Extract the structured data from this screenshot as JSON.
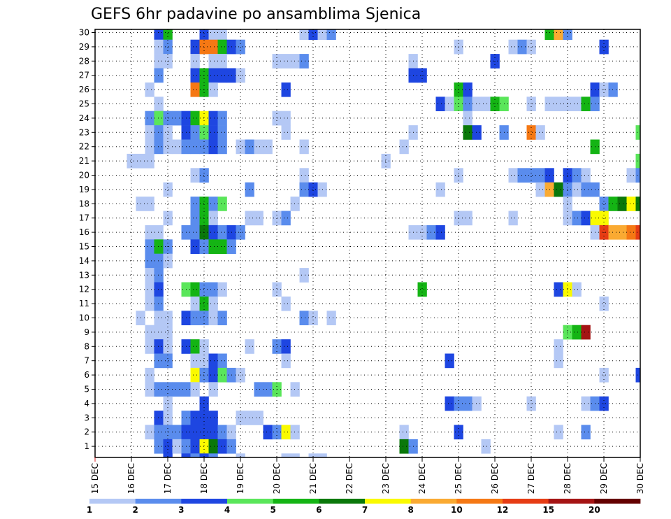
{
  "chart_data": {
    "type": "heatmap",
    "title": "GEFS 6hr padavine po ansamblima Sjenica",
    "xlabel": "",
    "ylabel": "",
    "x_ticks": [
      "15 DEC",
      "16 DEC",
      "17 DEC",
      "18 DEC",
      "19 DEC",
      "20 DEC",
      "21 DEC",
      "22 DEC",
      "23 DEC",
      "24 DEC",
      "25 DEC",
      "26 DEC",
      "27 DEC",
      "28 DEC",
      "29 DEC",
      "30 DEC"
    ],
    "y_ticks": [
      "1",
      "2",
      "3",
      "4",
      "5",
      "6",
      "7",
      "8",
      "9",
      "10",
      "11",
      "12",
      "13",
      "14",
      "15",
      "16",
      "17",
      "18",
      "19",
      "20",
      "21",
      "22",
      "23",
      "24",
      "25",
      "26",
      "27",
      "28",
      "29",
      "30"
    ],
    "x_range_steps": [
      0,
      60
    ],
    "y_range": [
      1,
      30
    ],
    "grid": true,
    "colorbar": {
      "labels": [
        "1",
        "2",
        "3",
        "4",
        "5",
        "6",
        "7",
        "8",
        "10",
        "12",
        "15",
        "20"
      ],
      "colors": [
        "#b4c8f5",
        "#5a8ced",
        "#1e46e1",
        "#5ae65a",
        "#14b414",
        "#0a780a",
        "#fafa00",
        "#faaa32",
        "#f57814",
        "#e63c14",
        "#a51414",
        "#640000"
      ],
      "boundaries": [
        1,
        2,
        3,
        4,
        5,
        6,
        7,
        8,
        10,
        12,
        15,
        20
      ]
    },
    "cells": [
      [
        30,
        7,
        3
      ],
      [
        30,
        8,
        5
      ],
      [
        30,
        12,
        3
      ],
      [
        30,
        13,
        1
      ],
      [
        30,
        14,
        1
      ],
      [
        30,
        23,
        1
      ],
      [
        30,
        24,
        3
      ],
      [
        30,
        25,
        1
      ],
      [
        30,
        26,
        2
      ],
      [
        30,
        50,
        5
      ],
      [
        30,
        51,
        8
      ],
      [
        30,
        52,
        2
      ],
      [
        29,
        7,
        1
      ],
      [
        29,
        8,
        2
      ],
      [
        29,
        11,
        3
      ],
      [
        29,
        12,
        9
      ],
      [
        29,
        13,
        9
      ],
      [
        29,
        14,
        5
      ],
      [
        29,
        15,
        3
      ],
      [
        29,
        16,
        2
      ],
      [
        29,
        40,
        1
      ],
      [
        29,
        46,
        1
      ],
      [
        29,
        47,
        2
      ],
      [
        29,
        48,
        1
      ],
      [
        29,
        56,
        3
      ],
      [
        28,
        7,
        1
      ],
      [
        28,
        8,
        1
      ],
      [
        28,
        11,
        1
      ],
      [
        28,
        13,
        1
      ],
      [
        28,
        14,
        1
      ],
      [
        28,
        20,
        1
      ],
      [
        28,
        21,
        1
      ],
      [
        28,
        22,
        1
      ],
      [
        28,
        23,
        2
      ],
      [
        28,
        35,
        1
      ],
      [
        28,
        44,
        3
      ],
      [
        27,
        7,
        2
      ],
      [
        27,
        11,
        3
      ],
      [
        27,
        12,
        5
      ],
      [
        27,
        13,
        3
      ],
      [
        27,
        14,
        3
      ],
      [
        27,
        15,
        3
      ],
      [
        27,
        16,
        1
      ],
      [
        27,
        35,
        3
      ],
      [
        27,
        36,
        3
      ],
      [
        26,
        6,
        1
      ],
      [
        26,
        11,
        9
      ],
      [
        26,
        12,
        5
      ],
      [
        26,
        13,
        1
      ],
      [
        26,
        21,
        3
      ],
      [
        26,
        40,
        5
      ],
      [
        26,
        41,
        3
      ],
      [
        26,
        55,
        3
      ],
      [
        26,
        56,
        1
      ],
      [
        26,
        57,
        2
      ],
      [
        25,
        7,
        1
      ],
      [
        25,
        38,
        3
      ],
      [
        25,
        39,
        1
      ],
      [
        25,
        40,
        4
      ],
      [
        25,
        41,
        2
      ],
      [
        25,
        42,
        1
      ],
      [
        25,
        43,
        1
      ],
      [
        25,
        44,
        5
      ],
      [
        25,
        45,
        4
      ],
      [
        25,
        48,
        1
      ],
      [
        25,
        50,
        1
      ],
      [
        25,
        51,
        1
      ],
      [
        25,
        52,
        1
      ],
      [
        25,
        53,
        1
      ],
      [
        25,
        54,
        5
      ],
      [
        25,
        55,
        2
      ],
      [
        24,
        6,
        2
      ],
      [
        24,
        7,
        4
      ],
      [
        24,
        8,
        2
      ],
      [
        24,
        9,
        2
      ],
      [
        24,
        10,
        3
      ],
      [
        24,
        11,
        5
      ],
      [
        24,
        12,
        7
      ],
      [
        24,
        13,
        3
      ],
      [
        24,
        14,
        2
      ],
      [
        24,
        20,
        1
      ],
      [
        24,
        21,
        1
      ],
      [
        24,
        41,
        1
      ],
      [
        23,
        6,
        1
      ],
      [
        23,
        7,
        2
      ],
      [
        23,
        8,
        1
      ],
      [
        23,
        10,
        3
      ],
      [
        23,
        11,
        2
      ],
      [
        23,
        12,
        4
      ],
      [
        23,
        13,
        3
      ],
      [
        23,
        14,
        2
      ],
      [
        23,
        21,
        1
      ],
      [
        23,
        35,
        1
      ],
      [
        23,
        41,
        6
      ],
      [
        23,
        42,
        3
      ],
      [
        23,
        45,
        2
      ],
      [
        23,
        48,
        9
      ],
      [
        23,
        49,
        1
      ],
      [
        23,
        60,
        4
      ],
      [
        22,
        6,
        1
      ],
      [
        22,
        7,
        2
      ],
      [
        22,
        8,
        1
      ],
      [
        22,
        9,
        1
      ],
      [
        22,
        10,
        2
      ],
      [
        22,
        11,
        2
      ],
      [
        22,
        12,
        2
      ],
      [
        22,
        13,
        3
      ],
      [
        22,
        14,
        2
      ],
      [
        22,
        16,
        1
      ],
      [
        22,
        17,
        2
      ],
      [
        22,
        18,
        1
      ],
      [
        22,
        19,
        1
      ],
      [
        22,
        23,
        1
      ],
      [
        22,
        34,
        1
      ],
      [
        22,
        55,
        5
      ],
      [
        21,
        4,
        1
      ],
      [
        21,
        5,
        1
      ],
      [
        21,
        6,
        1
      ],
      [
        21,
        32,
        1
      ],
      [
        21,
        60,
        4
      ],
      [
        20,
        11,
        1
      ],
      [
        20,
        12,
        2
      ],
      [
        20,
        23,
        1
      ],
      [
        20,
        40,
        1
      ],
      [
        20,
        46,
        1
      ],
      [
        20,
        47,
        2
      ],
      [
        20,
        48,
        2
      ],
      [
        20,
        49,
        2
      ],
      [
        20,
        50,
        3
      ],
      [
        20,
        52,
        3
      ],
      [
        20,
        53,
        2
      ],
      [
        20,
        54,
        1
      ],
      [
        20,
        59,
        1
      ],
      [
        20,
        60,
        2
      ],
      [
        19,
        8,
        1
      ],
      [
        19,
        17,
        2
      ],
      [
        19,
        23,
        2
      ],
      [
        19,
        24,
        3
      ],
      [
        19,
        25,
        1
      ],
      [
        19,
        38,
        1
      ],
      [
        19,
        49,
        1
      ],
      [
        19,
        50,
        8
      ],
      [
        19,
        51,
        6
      ],
      [
        19,
        52,
        2
      ],
      [
        19,
        53,
        1
      ],
      [
        19,
        54,
        2
      ],
      [
        19,
        55,
        2
      ],
      [
        18,
        5,
        1
      ],
      [
        18,
        6,
        1
      ],
      [
        18,
        11,
        2
      ],
      [
        18,
        12,
        5
      ],
      [
        18,
        13,
        2
      ],
      [
        18,
        14,
        4
      ],
      [
        18,
        22,
        1
      ],
      [
        18,
        52,
        1
      ],
      [
        18,
        56,
        2
      ],
      [
        18,
        57,
        5
      ],
      [
        18,
        58,
        6
      ],
      [
        18,
        59,
        7
      ],
      [
        18,
        60,
        6
      ],
      [
        17,
        8,
        1
      ],
      [
        17,
        11,
        2
      ],
      [
        17,
        12,
        5
      ],
      [
        17,
        13,
        1
      ],
      [
        17,
        17,
        1
      ],
      [
        17,
        18,
        1
      ],
      [
        17,
        20,
        1
      ],
      [
        17,
        21,
        2
      ],
      [
        17,
        40,
        1
      ],
      [
        17,
        41,
        1
      ],
      [
        17,
        46,
        1
      ],
      [
        17,
        52,
        1
      ],
      [
        17,
        53,
        2
      ],
      [
        17,
        54,
        3
      ],
      [
        17,
        55,
        7
      ],
      [
        17,
        56,
        7
      ],
      [
        16,
        6,
        1
      ],
      [
        16,
        7,
        1
      ],
      [
        16,
        10,
        2
      ],
      [
        16,
        11,
        2
      ],
      [
        16,
        12,
        6
      ],
      [
        16,
        13,
        3
      ],
      [
        16,
        14,
        2
      ],
      [
        16,
        15,
        3
      ],
      [
        16,
        16,
        2
      ],
      [
        16,
        35,
        1
      ],
      [
        16,
        36,
        1
      ],
      [
        16,
        37,
        2
      ],
      [
        16,
        38,
        3
      ],
      [
        16,
        55,
        1
      ],
      [
        16,
        56,
        10
      ],
      [
        16,
        57,
        8
      ],
      [
        16,
        58,
        8
      ],
      [
        16,
        59,
        9
      ],
      [
        16,
        60,
        10
      ],
      [
        15,
        6,
        2
      ],
      [
        15,
        7,
        5
      ],
      [
        15,
        8,
        2
      ],
      [
        15,
        11,
        3
      ],
      [
        15,
        12,
        2
      ],
      [
        15,
        13,
        5
      ],
      [
        15,
        14,
        5
      ],
      [
        15,
        15,
        2
      ],
      [
        14,
        6,
        2
      ],
      [
        14,
        7,
        2
      ],
      [
        14,
        8,
        1
      ],
      [
        13,
        6,
        1
      ],
      [
        13,
        7,
        2
      ],
      [
        13,
        23,
        1
      ],
      [
        12,
        6,
        1
      ],
      [
        12,
        7,
        3
      ],
      [
        12,
        10,
        4
      ],
      [
        12,
        11,
        5
      ],
      [
        12,
        12,
        2
      ],
      [
        12,
        13,
        2
      ],
      [
        12,
        14,
        1
      ],
      [
        12,
        20,
        1
      ],
      [
        12,
        36,
        5
      ],
      [
        12,
        51,
        3
      ],
      [
        12,
        52,
        7
      ],
      [
        12,
        53,
        1
      ],
      [
        11,
        6,
        1
      ],
      [
        11,
        7,
        2
      ],
      [
        11,
        11,
        1
      ],
      [
        11,
        12,
        5
      ],
      [
        11,
        13,
        1
      ],
      [
        11,
        21,
        1
      ],
      [
        11,
        56,
        1
      ],
      [
        10,
        5,
        1
      ],
      [
        10,
        7,
        1
      ],
      [
        10,
        8,
        1
      ],
      [
        10,
        10,
        3
      ],
      [
        10,
        11,
        2
      ],
      [
        10,
        12,
        2
      ],
      [
        10,
        13,
        1
      ],
      [
        10,
        14,
        2
      ],
      [
        10,
        23,
        2
      ],
      [
        10,
        24,
        1
      ],
      [
        10,
        26,
        1
      ],
      [
        9,
        6,
        1
      ],
      [
        9,
        7,
        1
      ],
      [
        9,
        8,
        1
      ],
      [
        9,
        52,
        4
      ],
      [
        9,
        53,
        5
      ],
      [
        9,
        54,
        11
      ],
      [
        8,
        6,
        1
      ],
      [
        8,
        7,
        3
      ],
      [
        8,
        8,
        1
      ],
      [
        8,
        10,
        3
      ],
      [
        8,
        11,
        5
      ],
      [
        8,
        12,
        1
      ],
      [
        8,
        17,
        1
      ],
      [
        8,
        20,
        2
      ],
      [
        8,
        21,
        3
      ],
      [
        8,
        51,
        1
      ],
      [
        7,
        7,
        2
      ],
      [
        7,
        8,
        2
      ],
      [
        7,
        11,
        1
      ],
      [
        7,
        12,
        1
      ],
      [
        7,
        13,
        3
      ],
      [
        7,
        14,
        2
      ],
      [
        7,
        21,
        1
      ],
      [
        7,
        39,
        3
      ],
      [
        7,
        51,
        1
      ],
      [
        6,
        6,
        1
      ],
      [
        6,
        11,
        7
      ],
      [
        6,
        12,
        2
      ],
      [
        6,
        13,
        3
      ],
      [
        6,
        14,
        4
      ],
      [
        6,
        15,
        2
      ],
      [
        6,
        16,
        1
      ],
      [
        6,
        56,
        1
      ],
      [
        6,
        60,
        3
      ],
      [
        5,
        6,
        1
      ],
      [
        5,
        7,
        2
      ],
      [
        5,
        8,
        2
      ],
      [
        5,
        9,
        2
      ],
      [
        5,
        10,
        2
      ],
      [
        5,
        11,
        1
      ],
      [
        5,
        13,
        1
      ],
      [
        5,
        18,
        2
      ],
      [
        5,
        19,
        2
      ],
      [
        5,
        20,
        4
      ],
      [
        5,
        22,
        1
      ],
      [
        4,
        8,
        1
      ],
      [
        4,
        12,
        3
      ],
      [
        4,
        39,
        3
      ],
      [
        4,
        40,
        2
      ],
      [
        4,
        41,
        2
      ],
      [
        4,
        42,
        1
      ],
      [
        4,
        48,
        1
      ],
      [
        4,
        54,
        1
      ],
      [
        4,
        55,
        2
      ],
      [
        4,
        56,
        3
      ],
      [
        3,
        7,
        3
      ],
      [
        3,
        8,
        1
      ],
      [
        3,
        10,
        2
      ],
      [
        3,
        11,
        3
      ],
      [
        3,
        12,
        3
      ],
      [
        3,
        13,
        3
      ],
      [
        3,
        16,
        1
      ],
      [
        3,
        17,
        1
      ],
      [
        3,
        18,
        1
      ],
      [
        2,
        6,
        1
      ],
      [
        2,
        7,
        2
      ],
      [
        2,
        8,
        2
      ],
      [
        2,
        9,
        2
      ],
      [
        2,
        10,
        3
      ],
      [
        2,
        11,
        3
      ],
      [
        2,
        12,
        3
      ],
      [
        2,
        13,
        3
      ],
      [
        2,
        14,
        2
      ],
      [
        2,
        15,
        1
      ],
      [
        2,
        19,
        3
      ],
      [
        2,
        20,
        2
      ],
      [
        2,
        21,
        7
      ],
      [
        2,
        22,
        1
      ],
      [
        2,
        34,
        1
      ],
      [
        2,
        40,
        3
      ],
      [
        2,
        51,
        1
      ],
      [
        2,
        54,
        2
      ],
      [
        1,
        7,
        2
      ],
      [
        1,
        8,
        3
      ],
      [
        1,
        9,
        1
      ],
      [
        1,
        10,
        2
      ],
      [
        1,
        11,
        3
      ],
      [
        1,
        12,
        7
      ],
      [
        1,
        13,
        6
      ],
      [
        1,
        14,
        3
      ],
      [
        1,
        15,
        2
      ],
      [
        1,
        34,
        6
      ],
      [
        1,
        35,
        2
      ],
      [
        1,
        43,
        1
      ],
      [
        0,
        8,
        3
      ],
      [
        0,
        10,
        3
      ],
      [
        0,
        11,
        2
      ],
      [
        0,
        12,
        3
      ],
      [
        0,
        13,
        2
      ],
      [
        0,
        16,
        1
      ],
      [
        0,
        21,
        1
      ],
      [
        0,
        22,
        1
      ],
      [
        0,
        24,
        1
      ],
      [
        0,
        25,
        1
      ]
    ]
  }
}
